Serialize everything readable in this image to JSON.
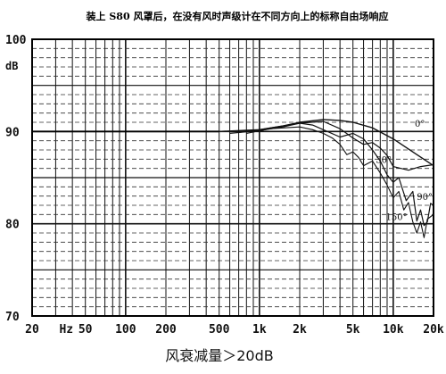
{
  "chart_data": {
    "type": "line",
    "title": "装上 S80 风罩后，在没有风时声级计在不同方向上的标称自由场响应",
    "ylabel": "dB",
    "caption": "风衰减量＞20dB",
    "x_scale": "log",
    "xlim": [
      20,
      20000
    ],
    "ylim": [
      70,
      100
    ],
    "grid": true,
    "y_ticks": [
      "100",
      "90",
      "80",
      "70"
    ],
    "x_ticks": [
      {
        "value": 20,
        "label": "20"
      },
      {
        "value": 36,
        "label": "Hz"
      },
      {
        "value": 50,
        "label": "50"
      },
      {
        "value": 100,
        "label": "100"
      },
      {
        "value": 200,
        "label": "200"
      },
      {
        "value": 500,
        "label": "500"
      },
      {
        "value": 1000,
        "label": "1k"
      },
      {
        "value": 2000,
        "label": "2k"
      },
      {
        "value": 5000,
        "label": "5k"
      },
      {
        "value": 10000,
        "label": "10k"
      },
      {
        "value": 20000,
        "label": "20k"
      }
    ],
    "series": [
      {
        "name": "0°",
        "points": [
          [
            500,
            90
          ],
          [
            1000,
            90.2
          ],
          [
            1500,
            90.6
          ],
          [
            2000,
            91
          ],
          [
            3000,
            91.3
          ],
          [
            4000,
            91.2
          ],
          [
            5000,
            91
          ],
          [
            7000,
            90.4
          ],
          [
            10000,
            89.2
          ],
          [
            15000,
            87.5
          ],
          [
            20000,
            86.3
          ]
        ]
      },
      {
        "name": "30°",
        "points": [
          [
            600,
            89.8
          ],
          [
            1000,
            90.1
          ],
          [
            1500,
            90.5
          ],
          [
            2000,
            90.9
          ],
          [
            3000,
            91.1
          ],
          [
            4000,
            90.3
          ],
          [
            5000,
            89.3
          ],
          [
            6000,
            88.6
          ],
          [
            7000,
            88.8
          ],
          [
            8000,
            88.2
          ],
          [
            9000,
            87.4
          ],
          [
            10000,
            86.2
          ],
          [
            13000,
            85.8
          ],
          [
            16000,
            86.2
          ],
          [
            20000,
            86.4
          ]
        ]
      },
      {
        "name": "90°",
        "points": [
          [
            700,
            89.9
          ],
          [
            1000,
            90.2
          ],
          [
            1500,
            90.6
          ],
          [
            2000,
            90.9
          ],
          [
            2500,
            90.7
          ],
          [
            3000,
            90.2
          ],
          [
            4000,
            89.4
          ],
          [
            5000,
            89.8
          ],
          [
            6000,
            89.2
          ],
          [
            7000,
            88
          ],
          [
            8000,
            86.8
          ],
          [
            9000,
            85.3
          ],
          [
            10000,
            84.5
          ],
          [
            11000,
            85
          ],
          [
            12500,
            82.5
          ],
          [
            14000,
            83.5
          ],
          [
            15000,
            80.3
          ],
          [
            16000,
            81.5
          ],
          [
            17000,
            79.8
          ],
          [
            18000,
            80.2
          ],
          [
            19000,
            82.2
          ],
          [
            20000,
            82
          ]
        ]
      },
      {
        "name": "150°",
        "points": [
          [
            800,
            89.8
          ],
          [
            1200,
            90.3
          ],
          [
            2000,
            90.5
          ],
          [
            2500,
            90.2
          ],
          [
            3000,
            89.8
          ],
          [
            3500,
            89.3
          ],
          [
            4000,
            88.6
          ],
          [
            4500,
            87.5
          ],
          [
            5000,
            87.8
          ],
          [
            5500,
            87.2
          ],
          [
            6000,
            86.3
          ],
          [
            7000,
            86.8
          ],
          [
            8000,
            85.5
          ],
          [
            9000,
            84.2
          ],
          [
            10000,
            82.8
          ],
          [
            11000,
            83.5
          ],
          [
            12000,
            81.5
          ],
          [
            13000,
            82.3
          ],
          [
            14000,
            80.2
          ],
          [
            15000,
            79
          ],
          [
            16000,
            80.2
          ],
          [
            17000,
            78.5
          ],
          [
            18000,
            80.5
          ],
          [
            20000,
            81
          ]
        ]
      }
    ],
    "annotations": [
      {
        "label": "0°",
        "x": 14500,
        "y": 90.5
      },
      {
        "label": "30°",
        "x": 7400,
        "y": 86.6
      },
      {
        "label": "90°",
        "x": 15000,
        "y": 82.6
      },
      {
        "label": "150°",
        "x": 8800,
        "y": 80.4
      }
    ]
  }
}
